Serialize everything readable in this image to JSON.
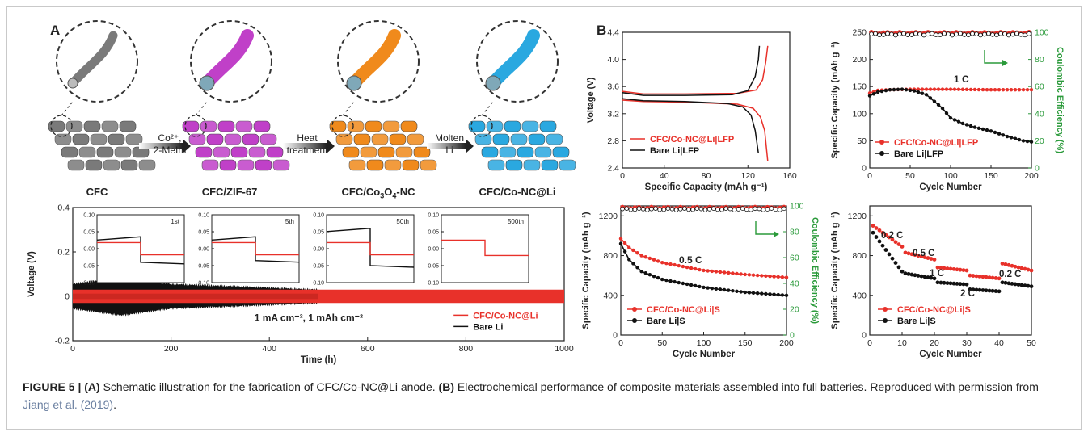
{
  "panel_labels": {
    "a": "A",
    "b": "B"
  },
  "schematic": {
    "stages": [
      {
        "label": "CFC",
        "sub": ""
      },
      {
        "label": "CFC/ZIF-67",
        "sub": ""
      },
      {
        "label": "CFC/Co",
        "sub": "3",
        "label2": "O",
        "sub2": "4",
        "label3": "-NC"
      },
      {
        "label": "CFC/Co-NC@Li",
        "sub": ""
      }
    ],
    "steps": [
      {
        "line1": "Co²⁺,",
        "line2": "2-MeIm"
      },
      {
        "line1": "Heat",
        "line2": "treatment"
      },
      {
        "line1": "Molten",
        "line2": "Li"
      }
    ],
    "colors": {
      "cfc": "#7a7a7a",
      "zif": "#c040c8",
      "co3o4": "#f08a1c",
      "coli": "#2aa8e0"
    }
  },
  "caption": {
    "fig": "FIGURE 5 |",
    "a_tag": "(A)",
    "a_text": " Schematic illustration for the fabrication of CFC/Co-NC@Li anode. ",
    "b_tag": "(B)",
    "b_text": " Electrochemical performance of composite materials assembled into full batteries. Reproduced with permission from ",
    "cite": "Jiang et al. (2019)",
    "end": "."
  },
  "chart_data": [
    {
      "id": "voltage-time",
      "type": "line",
      "xlabel": "Time (h)",
      "ylabel": "Voltage (V)",
      "xlim": [
        0,
        1000
      ],
      "ylim": [
        -0.2,
        0.4
      ],
      "xticks": [
        0,
        200,
        400,
        600,
        800,
        1000
      ],
      "yticks": [
        -0.2,
        0.0,
        0.2,
        0.4
      ],
      "annotation": "1 mA cm⁻², 1 mAh cm⁻²",
      "legend_position": "bottom-right",
      "series": [
        {
          "name": "CFC/Co-NC@Li",
          "color": "#e8312a",
          "band": [
            [
              0,
              0.03
            ],
            [
              500,
              0.025
            ],
            [
              1000,
              0.025
            ]
          ]
        },
        {
          "name": "Bare Li",
          "color": "#111111",
          "band": [
            [
              0,
              0.05
            ],
            [
              100,
              0.08
            ],
            [
              200,
              0.05
            ],
            [
              500,
              0.025
            ]
          ]
        }
      ],
      "insets": [
        {
          "label": "1st",
          "ylim": [
            -0.1,
            0.1
          ],
          "yticks": [
            "0.10",
            "0.05",
            "0.00",
            "-0.05",
            "-0.10"
          ],
          "black": [
            0.035,
            -0.04
          ],
          "red": [
            0.018,
            -0.018
          ]
        },
        {
          "label": "5th",
          "ylim": [
            -0.1,
            0.1
          ],
          "yticks": [
            "0.10",
            "0.05",
            "0.00",
            "-0.05",
            "-0.10"
          ],
          "black": [
            0.035,
            -0.035
          ],
          "red": [
            0.018,
            -0.018
          ]
        },
        {
          "label": "50th",
          "ylim": [
            -0.1,
            0.1
          ],
          "yticks": [
            "0.10",
            "0.05",
            "0.00",
            "-0.05",
            "-0.10"
          ],
          "black": [
            0.06,
            -0.05
          ],
          "red": [
            0.018,
            -0.018
          ]
        },
        {
          "label": "500th",
          "ylim": [
            -0.1,
            0.1
          ],
          "yticks": [
            "0.10",
            "0.05",
            "0.00",
            "-0.05",
            "-0.10"
          ],
          "black": null,
          "red": [
            0.025,
            -0.02
          ]
        }
      ]
    },
    {
      "id": "voltage-capacity",
      "type": "line",
      "xlabel": "Specific Capacity (mAh g⁻¹)",
      "ylabel": "Voltage (V)",
      "xlim": [
        0,
        160
      ],
      "ylim": [
        2.4,
        4.4
      ],
      "xticks": [
        0,
        40,
        80,
        120,
        160
      ],
      "yticks": [
        "2.4",
        "2.8",
        "3.2",
        "3.6",
        "4.0",
        "4.4"
      ],
      "legend_position": "bottom-left",
      "series": [
        {
          "name": "CFC/Co-NC@Li|LFP",
          "color": "#e8312a",
          "charge": [
            [
              0,
              3.53
            ],
            [
              20,
              3.49
            ],
            [
              60,
              3.49
            ],
            [
              110,
              3.5
            ],
            [
              128,
              3.55
            ],
            [
              134,
              3.7
            ],
            [
              137,
              3.95
            ],
            [
              139,
              4.2
            ]
          ],
          "discharge": [
            [
              0,
              3.4
            ],
            [
              20,
              3.38
            ],
            [
              60,
              3.37
            ],
            [
              110,
              3.34
            ],
            [
              125,
              3.28
            ],
            [
              132,
              3.15
            ],
            [
              136,
              2.95
            ],
            [
              139,
              2.5
            ]
          ]
        },
        {
          "name": "Bare Li|LFP",
          "color": "#111111",
          "charge": [
            [
              0,
              3.51
            ],
            [
              20,
              3.47
            ],
            [
              60,
              3.47
            ],
            [
              105,
              3.48
            ],
            [
              120,
              3.54
            ],
            [
              127,
              3.75
            ],
            [
              130,
              4.0
            ],
            [
              131,
              4.2
            ]
          ],
          "discharge": [
            [
              0,
              3.42
            ],
            [
              20,
              3.39
            ],
            [
              60,
              3.38
            ],
            [
              100,
              3.35
            ],
            [
              115,
              3.3
            ],
            [
              123,
              3.18
            ],
            [
              127,
              2.95
            ],
            [
              130,
              2.62
            ]
          ]
        }
      ]
    },
    {
      "id": "cycling-lfp",
      "type": "line",
      "xlabel": "Cycle Number",
      "ylabel": "Specific Capacity (mAh g⁻¹)",
      "y2label": "Coulombic Efficiency (%)",
      "xlim": [
        0,
        200
      ],
      "ylim": [
        0,
        250
      ],
      "y2lim": [
        0,
        100
      ],
      "xticks": [
        0,
        50,
        100,
        150,
        200
      ],
      "yticks": [
        0,
        50,
        100,
        150,
        200,
        250
      ],
      "y2ticks": [
        0,
        20,
        40,
        60,
        80,
        100
      ],
      "annotation": "1 C",
      "legend_position": "bottom-left",
      "efficiency": {
        "CFC/Co-NC@Li|LFP": 99.5,
        "Bare Li|LFP": 98.5
      },
      "series": [
        {
          "name": "CFC/Co-NC@Li|LFP",
          "color": "#e8312a",
          "x": [
            0,
            10,
            25,
            50,
            100,
            150,
            200
          ],
          "y": [
            138,
            143,
            144,
            145,
            145,
            144,
            144
          ]
        },
        {
          "name": "Bare Li|LFP",
          "color": "#111111",
          "x": [
            0,
            10,
            25,
            40,
            55,
            70,
            90,
            100,
            115,
            130,
            150,
            170,
            190,
            200
          ],
          "y": [
            133,
            140,
            144,
            145,
            142,
            135,
            110,
            92,
            82,
            75,
            68,
            58,
            50,
            48
          ]
        }
      ]
    },
    {
      "id": "cycling-s",
      "type": "line",
      "xlabel": "Cycle Number",
      "ylabel": "Specific Capacity (mAh g⁻¹)",
      "y2label": "Coulombic Efficiency (%)",
      "xlim": [
        0,
        200
      ],
      "ylim": [
        0,
        1300
      ],
      "y2lim": [
        0,
        100
      ],
      "xticks": [
        0,
        50,
        100,
        150,
        200
      ],
      "yticks": [
        0,
        400,
        800,
        1200
      ],
      "y2ticks": [
        0,
        20,
        40,
        60,
        80,
        100
      ],
      "annotation": "0.5 C",
      "legend_position": "bottom-left",
      "efficiency": {
        "CFC/Co-NC@Li|S": 98.5,
        "Bare Li|S": 97.5
      },
      "series": [
        {
          "name": "CFC/Co-NC@Li|S",
          "color": "#e8312a",
          "x": [
            0,
            10,
            25,
            50,
            100,
            150,
            200
          ],
          "y": [
            970,
            880,
            800,
            730,
            650,
            610,
            580
          ]
        },
        {
          "name": "Bare Li|S",
          "color": "#111111",
          "x": [
            0,
            10,
            25,
            50,
            100,
            150,
            200
          ],
          "y": [
            920,
            760,
            640,
            560,
            480,
            430,
            400
          ]
        }
      ]
    },
    {
      "id": "rate-s",
      "type": "scatter",
      "xlabel": "Cycle Number",
      "ylabel": "Specific Capacity (mAh g⁻¹)",
      "xlim": [
        0,
        50
      ],
      "ylim": [
        0,
        1300
      ],
      "xticks": [
        0,
        10,
        20,
        30,
        40,
        50
      ],
      "yticks": [
        0,
        400,
        800,
        1200
      ],
      "rate_labels": [
        "0.2 C",
        "0.5 C",
        "1 C",
        "2 C",
        "0.2 C"
      ],
      "legend_position": "bottom-left",
      "series": [
        {
          "name": "CFC/Co-NC@Li|S",
          "color": "#e8312a",
          "segments": [
            [
              1100,
              890
            ],
            [
              830,
              760
            ],
            [
              680,
              650
            ],
            [
              600,
              570
            ],
            [
              720,
              650
            ]
          ]
        },
        {
          "name": "Bare Li|S",
          "color": "#111111",
          "segments": [
            [
              1030,
              640
            ],
            [
              620,
              570
            ],
            [
              530,
              510
            ],
            [
              460,
              440
            ],
            [
              530,
              490
            ]
          ]
        }
      ]
    }
  ]
}
